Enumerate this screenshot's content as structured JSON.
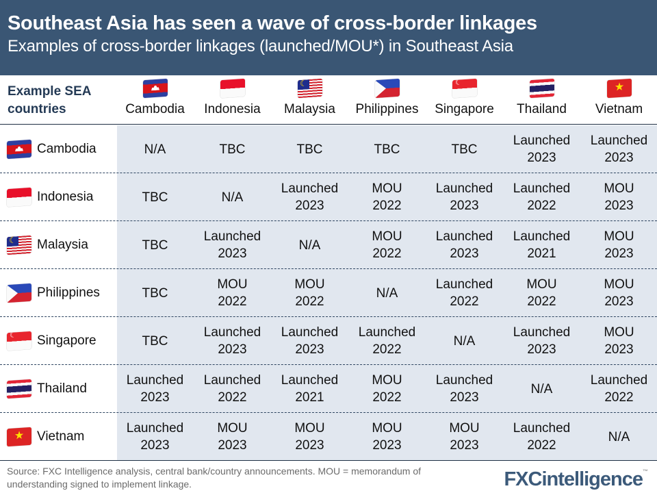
{
  "header": {
    "title": "Southeast Asia has seen a wave of cross-border linkages",
    "subtitle": "Examples of cross-border linkages (launched/MOU*) in Southeast Asia"
  },
  "table": {
    "corner_label_line1": "Example SEA",
    "corner_label_line2": "countries",
    "columns": [
      {
        "name": "Cambodia",
        "flag": "kh"
      },
      {
        "name": "Indonesia",
        "flag": "id"
      },
      {
        "name": "Malaysia",
        "flag": "my"
      },
      {
        "name": "Philippines",
        "flag": "ph"
      },
      {
        "name": "Singapore",
        "flag": "sg"
      },
      {
        "name": "Thailand",
        "flag": "th"
      },
      {
        "name": "Vietnam",
        "flag": "vn"
      }
    ],
    "rows": [
      {
        "name": "Cambodia",
        "flag": "kh",
        "cells": [
          {
            "status": "N/A",
            "year": ""
          },
          {
            "status": "TBC",
            "year": ""
          },
          {
            "status": "TBC",
            "year": ""
          },
          {
            "status": "TBC",
            "year": ""
          },
          {
            "status": "TBC",
            "year": ""
          },
          {
            "status": "Launched",
            "year": "2023"
          },
          {
            "status": "Launched",
            "year": "2023"
          }
        ]
      },
      {
        "name": "Indonesia",
        "flag": "id",
        "cells": [
          {
            "status": "TBC",
            "year": ""
          },
          {
            "status": "N/A",
            "year": ""
          },
          {
            "status": "Launched",
            "year": "2023"
          },
          {
            "status": "MOU",
            "year": "2022"
          },
          {
            "status": "Launched",
            "year": "2023"
          },
          {
            "status": "Launched",
            "year": "2022"
          },
          {
            "status": "MOU",
            "year": "2023"
          }
        ]
      },
      {
        "name": "Malaysia",
        "flag": "my",
        "cells": [
          {
            "status": "TBC",
            "year": ""
          },
          {
            "status": "Launched",
            "year": "2023"
          },
          {
            "status": "N/A",
            "year": ""
          },
          {
            "status": "MOU",
            "year": "2022"
          },
          {
            "status": "Launched",
            "year": "2023"
          },
          {
            "status": "Launched",
            "year": "2021"
          },
          {
            "status": "MOU",
            "year": "2023"
          }
        ]
      },
      {
        "name": "Philippines",
        "flag": "ph",
        "cells": [
          {
            "status": "TBC",
            "year": ""
          },
          {
            "status": "MOU",
            "year": "2022"
          },
          {
            "status": "MOU",
            "year": "2022"
          },
          {
            "status": "N/A",
            "year": ""
          },
          {
            "status": "Launched",
            "year": "2022"
          },
          {
            "status": "MOU",
            "year": "2022"
          },
          {
            "status": "MOU",
            "year": "2023"
          }
        ]
      },
      {
        "name": "Singapore",
        "flag": "sg",
        "cells": [
          {
            "status": "TBC",
            "year": ""
          },
          {
            "status": "Launched",
            "year": "2023"
          },
          {
            "status": "Launched",
            "year": "2023"
          },
          {
            "status": "Launched",
            "year": "2022"
          },
          {
            "status": "N/A",
            "year": ""
          },
          {
            "status": "Launched",
            "year": "2023"
          },
          {
            "status": "MOU",
            "year": "2023"
          }
        ]
      },
      {
        "name": "Thailand",
        "flag": "th",
        "cells": [
          {
            "status": "Launched",
            "year": "2023"
          },
          {
            "status": "Launched",
            "year": "2022"
          },
          {
            "status": "Launched",
            "year": "2021"
          },
          {
            "status": "MOU",
            "year": "2022"
          },
          {
            "status": "Launched",
            "year": "2023"
          },
          {
            "status": "N/A",
            "year": ""
          },
          {
            "status": "Launched",
            "year": "2022"
          }
        ]
      },
      {
        "name": "Vietnam",
        "flag": "vn",
        "cells": [
          {
            "status": "Launched",
            "year": "2023"
          },
          {
            "status": "MOU",
            "year": "2023"
          },
          {
            "status": "MOU",
            "year": "2023"
          },
          {
            "status": "MOU",
            "year": "2023"
          },
          {
            "status": "MOU",
            "year": "2023"
          },
          {
            "status": "Launched",
            "year": "2022"
          },
          {
            "status": "N/A",
            "year": ""
          }
        ]
      }
    ]
  },
  "footer": {
    "source": "Source: FXC Intelligence analysis, central bank/country announcements. MOU = memorandum of understanding signed to implement linkage."
  },
  "logo": {
    "text_fx": "FXC",
    "text_intel": "intelligence",
    "tm": "™"
  },
  "colors": {
    "header_bg": "#3a5674",
    "body_bg": "#e1e7ef",
    "logo": "#3c5a7a"
  },
  "chart_data": {
    "type": "table",
    "title": "Southeast Asia has seen a wave of cross-border linkages",
    "subtitle": "Examples of cross-border linkages (launched/MOU*) in Southeast Asia",
    "row_header": "Example SEA countries",
    "columns": [
      "Cambodia",
      "Indonesia",
      "Malaysia",
      "Philippines",
      "Singapore",
      "Thailand",
      "Vietnam"
    ],
    "rows": [
      "Cambodia",
      "Indonesia",
      "Malaysia",
      "Philippines",
      "Singapore",
      "Thailand",
      "Vietnam"
    ],
    "values": [
      [
        "N/A",
        "TBC",
        "TBC",
        "TBC",
        "TBC",
        "Launched 2023",
        "Launched 2023"
      ],
      [
        "TBC",
        "N/A",
        "Launched 2023",
        "MOU 2022",
        "Launched 2023",
        "Launched 2022",
        "MOU 2023"
      ],
      [
        "TBC",
        "Launched 2023",
        "N/A",
        "MOU 2022",
        "Launched 2023",
        "Launched 2021",
        "MOU 2023"
      ],
      [
        "TBC",
        "MOU 2022",
        "MOU 2022",
        "N/A",
        "Launched 2022",
        "MOU 2022",
        "MOU 2023"
      ],
      [
        "TBC",
        "Launched 2023",
        "Launched 2023",
        "Launched 2022",
        "N/A",
        "Launched 2023",
        "MOU 2023"
      ],
      [
        "Launched 2023",
        "Launched 2022",
        "Launched 2021",
        "MOU 2022",
        "Launched 2023",
        "N/A",
        "Launched 2022"
      ],
      [
        "Launched 2023",
        "MOU 2023",
        "MOU 2023",
        "MOU 2023",
        "MOU 2023",
        "Launched 2022",
        "N/A"
      ]
    ],
    "note": "Source: FXC Intelligence analysis, central bank/country announcements. MOU = memorandum of understanding signed to implement linkage."
  }
}
